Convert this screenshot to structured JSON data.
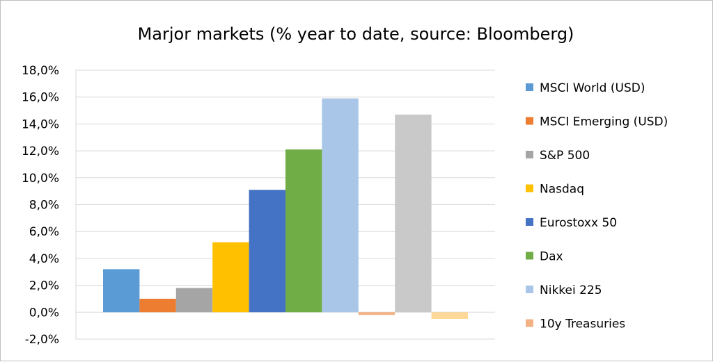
{
  "chart_data": {
    "type": "bar",
    "title": "Marjor markets (% year to date, source: Bloomberg)",
    "xlabel": "",
    "ylabel": "",
    "ylim": [
      -0.02,
      0.18
    ],
    "y_ticks": [
      "-2,0%",
      "0,0%",
      "2,0%",
      "4,0%",
      "6,0%",
      "8,0%",
      "10,0%",
      "12,0%",
      "14,0%",
      "16,0%",
      "18,0%"
    ],
    "grid": true,
    "legend_position": "right",
    "series": [
      {
        "name": "MSCI World (USD)",
        "value": 0.032,
        "color": "#5b9bd5"
      },
      {
        "name": "MSCI Emerging (USD)",
        "value": 0.01,
        "color": "#ed7d31"
      },
      {
        "name": "S&P 500",
        "value": 0.018,
        "color": "#a5a5a5"
      },
      {
        "name": "Nasdaq",
        "value": 0.052,
        "color": "#ffc000"
      },
      {
        "name": "Eurostoxx 50",
        "value": 0.091,
        "color": "#4472c4"
      },
      {
        "name": "Dax",
        "value": 0.121,
        "color": "#70ad47"
      },
      {
        "name": "Nikkei 225",
        "value": 0.159,
        "color": "#a9c6e8"
      },
      {
        "name": "10y Treasuries",
        "value": -0.002,
        "color": "#f4b183"
      },
      {
        "name": "",
        "value": 0.147,
        "color": "#c9c9c9"
      },
      {
        "name": "",
        "value": -0.005,
        "color": "#ffd89a"
      }
    ]
  }
}
